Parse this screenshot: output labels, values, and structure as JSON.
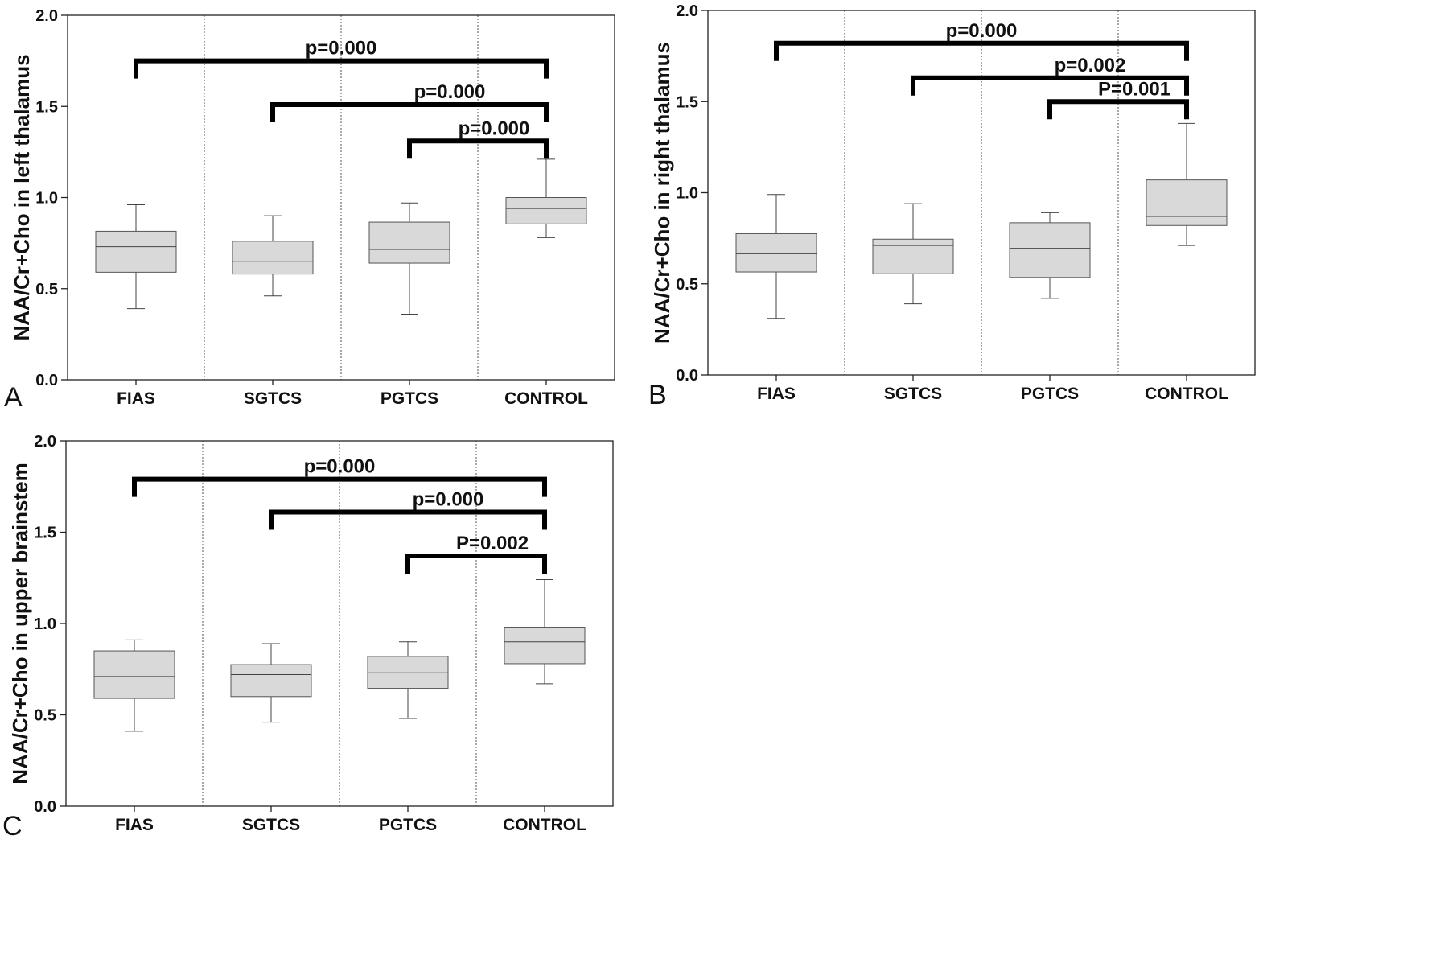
{
  "chart_data": [
    {
      "panel_label": "A",
      "type": "boxplot",
      "ylabel": "NAA/Cr+Cho in left thalamus",
      "ylim": [
        0,
        2.0
      ],
      "yticks": [
        "0.0",
        "0.5",
        "1.0",
        "1.5",
        "2.0"
      ],
      "categories": [
        "FIAS",
        "SGTCS",
        "PGTCS",
        "CONTROL"
      ],
      "boxes": [
        {
          "min": 0.39,
          "q1": 0.59,
          "median": 0.73,
          "q3": 0.815,
          "max": 0.96
        },
        {
          "min": 0.46,
          "q1": 0.58,
          "median": 0.65,
          "q3": 0.76,
          "max": 0.9
        },
        {
          "min": 0.36,
          "q1": 0.64,
          "median": 0.715,
          "q3": 0.865,
          "max": 0.97
        },
        {
          "min": 0.78,
          "q1": 0.855,
          "median": 0.94,
          "q3": 1.0,
          "max": 1.21
        }
      ],
      "comparisons": [
        {
          "from": 0,
          "to": 3,
          "label": "p=0.000",
          "level": 1.75
        },
        {
          "from": 1,
          "to": 3,
          "label": "p=0.000",
          "level": 1.51
        },
        {
          "from": 2,
          "to": 3,
          "label": "p=0.000",
          "level": 1.31
        }
      ]
    },
    {
      "panel_label": "B",
      "type": "boxplot",
      "ylabel": "NAA/Cr+Cho in right thalamus",
      "ylim": [
        0,
        2.0
      ],
      "yticks": [
        "0.0",
        "0.5",
        "1.0",
        "1.5",
        "2.0"
      ],
      "categories": [
        "FIAS",
        "SGTCS",
        "PGTCS",
        "CONTROL"
      ],
      "boxes": [
        {
          "min": 0.31,
          "q1": 0.565,
          "median": 0.665,
          "q3": 0.775,
          "max": 0.99
        },
        {
          "min": 0.39,
          "q1": 0.555,
          "median": 0.71,
          "q3": 0.745,
          "max": 0.94
        },
        {
          "min": 0.42,
          "q1": 0.535,
          "median": 0.695,
          "q3": 0.835,
          "max": 0.89
        },
        {
          "min": 0.71,
          "q1": 0.82,
          "median": 0.87,
          "q3": 1.07,
          "max": 1.38
        }
      ],
      "comparisons": [
        {
          "from": 0,
          "to": 3,
          "label": "p=0.000",
          "level": 1.82
        },
        {
          "from": 1,
          "to": 3,
          "label": "p=0.002",
          "level": 1.63
        },
        {
          "from": 2,
          "to": 3,
          "label": "P=0.001",
          "level": 1.5
        }
      ]
    },
    {
      "panel_label": "C",
      "type": "boxplot",
      "ylabel": "NAA/Cr+Cho in upper brainstem",
      "ylim": [
        0,
        2.0
      ],
      "yticks": [
        "0.0",
        "0.5",
        "1.0",
        "1.5",
        "2.0"
      ],
      "categories": [
        "FIAS",
        "SGTCS",
        "PGTCS",
        "CONTROL"
      ],
      "boxes": [
        {
          "min": 0.41,
          "q1": 0.59,
          "median": 0.71,
          "q3": 0.85,
          "max": 0.91
        },
        {
          "min": 0.46,
          "q1": 0.6,
          "median": 0.72,
          "q3": 0.775,
          "max": 0.89
        },
        {
          "min": 0.48,
          "q1": 0.645,
          "median": 0.73,
          "q3": 0.82,
          "max": 0.9
        },
        {
          "min": 0.67,
          "q1": 0.78,
          "median": 0.9,
          "q3": 0.98,
          "max": 1.24
        }
      ],
      "comparisons": [
        {
          "from": 0,
          "to": 3,
          "label": "p=0.000",
          "level": 1.79
        },
        {
          "from": 1,
          "to": 3,
          "label": "p=0.000",
          "level": 1.61
        },
        {
          "from": 2,
          "to": 3,
          "label": "P=0.002",
          "level": 1.37
        }
      ]
    }
  ]
}
